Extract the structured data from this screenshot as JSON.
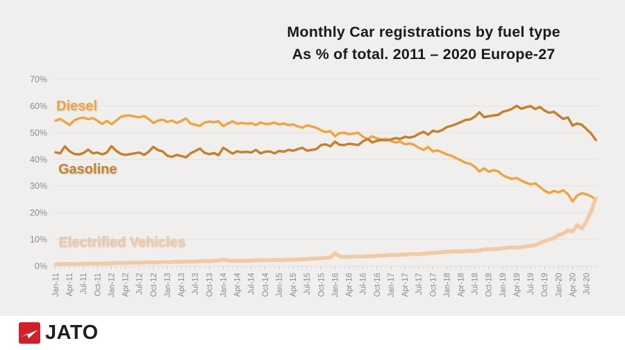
{
  "title": {
    "line1": "Monthly Car registrations by fuel type",
    "line2": "As % of total. 2011 – 2020 Europe-27"
  },
  "footer": {
    "brand": "JATO"
  },
  "colors": {
    "background": "#f0efed",
    "footer_bg": "#ffffff",
    "title_text": "#1b1a19",
    "axis_text": "#8c8b89",
    "gridline": "#e3e2e0",
    "tick": "#cfcecc",
    "diesel": "#f1a345",
    "gasoline": "#c4812e",
    "electrified": "#f3c9a4",
    "brand_red": "#d0202a",
    "brand_text": "#1f1f1f"
  },
  "chart_data": {
    "type": "line",
    "title": "Monthly Car registrations by fuel type",
    "subtitle": "As % of total. 2011 – 2020 Europe-27",
    "xlabel": "",
    "ylabel": "",
    "ylim": [
      0,
      70
    ],
    "ytick_step": 10,
    "ytick_suffix": "%",
    "tick_every": 3,
    "grid": true,
    "legend_position": "inline-annotations",
    "x": [
      "Jan-11",
      "Feb-11",
      "Mar-11",
      "Apr-11",
      "May-11",
      "Jun-11",
      "Jul-11",
      "Aug-11",
      "Sep-11",
      "Oct-11",
      "Nov-11",
      "Dec-11",
      "Jan-12",
      "Feb-12",
      "Mar-12",
      "Apr-12",
      "May-12",
      "Jun-12",
      "Jul-12",
      "Aug-12",
      "Sep-12",
      "Oct-12",
      "Nov-12",
      "Dec-12",
      "Jan-13",
      "Feb-13",
      "Mar-13",
      "Apr-13",
      "May-13",
      "Jun-13",
      "Jul-13",
      "Aug-13",
      "Sep-13",
      "Oct-13",
      "Nov-13",
      "Dec-13",
      "Jan-14",
      "Feb-14",
      "Mar-14",
      "Apr-14",
      "May-14",
      "Jun-14",
      "Jul-14",
      "Aug-14",
      "Sep-14",
      "Oct-14",
      "Nov-14",
      "Dec-14",
      "Jan-15",
      "Feb-15",
      "Mar-15",
      "Apr-15",
      "May-15",
      "Jun-15",
      "Jul-15",
      "Aug-15",
      "Sep-15",
      "Oct-15",
      "Nov-15",
      "Dec-15",
      "Jan-16",
      "Feb-16",
      "Mar-16",
      "Apr-16",
      "May-16",
      "Jun-16",
      "Jul-16",
      "Aug-16",
      "Sep-16",
      "Oct-16",
      "Nov-16",
      "Dec-16",
      "Jan-17",
      "Feb-17",
      "Mar-17",
      "Apr-17",
      "May-17",
      "Jun-17",
      "Jul-17",
      "Aug-17",
      "Sep-17",
      "Oct-17",
      "Nov-17",
      "Dec-17",
      "Jan-18",
      "Feb-18",
      "Mar-18",
      "Apr-18",
      "May-18",
      "Jun-18",
      "Jul-18",
      "Aug-18",
      "Sep-18",
      "Oct-18",
      "Nov-18",
      "Dec-18",
      "Jan-19",
      "Feb-19",
      "Mar-19",
      "Apr-19",
      "May-19",
      "Jun-19",
      "Jul-19",
      "Aug-19",
      "Sep-19",
      "Oct-19",
      "Nov-19",
      "Dec-19",
      "Jan-20",
      "Feb-20",
      "Mar-20",
      "Apr-20",
      "May-20",
      "Jun-20",
      "Jul-20",
      "Aug-20",
      "Sep-20"
    ],
    "series": [
      {
        "name": "Diesel",
        "color": "#f1a345",
        "width": 3.5,
        "values": [
          54.5,
          55.1,
          54.0,
          52.8,
          54.6,
          55.3,
          55.6,
          55.0,
          55.4,
          54.4,
          53.2,
          54.4,
          53.1,
          54.4,
          55.9,
          56.3,
          56.4,
          56.0,
          55.7,
          56.2,
          55.1,
          53.6,
          54.5,
          54.8,
          54.0,
          54.5,
          53.6,
          54.3,
          55.3,
          53.4,
          52.9,
          52.5,
          53.8,
          54.1,
          53.9,
          54.2,
          52.4,
          53.4,
          54.2,
          53.3,
          53.6,
          53.3,
          53.5,
          52.8,
          53.8,
          53.2,
          53.3,
          53.7,
          53.0,
          53.4,
          52.8,
          53.0,
          52.3,
          51.8,
          52.7,
          52.3,
          51.8,
          50.8,
          50.2,
          50.5,
          48.6,
          49.8,
          49.9,
          49.4,
          49.6,
          49.9,
          48.4,
          47.5,
          48.6,
          47.8,
          47.4,
          47.6,
          46.8,
          46.3,
          46.6,
          45.6,
          45.9,
          45.4,
          44.3,
          43.5,
          44.6,
          42.9,
          43.3,
          42.6,
          41.8,
          41.3,
          40.4,
          39.6,
          38.7,
          38.3,
          37.2,
          35.4,
          36.6,
          35.3,
          35.9,
          35.5,
          34.0,
          33.2,
          32.6,
          33.0,
          32.0,
          31.2,
          30.6,
          31.0,
          29.6,
          28.2,
          27.3,
          28.1,
          27.6,
          28.4,
          26.9,
          24.2,
          26.4,
          27.3,
          26.8,
          26.1,
          24.8
        ]
      },
      {
        "name": "Gasoline",
        "color": "#c4812e",
        "width": 3.5,
        "values": [
          42.6,
          42.2,
          44.8,
          43.0,
          42.0,
          41.8,
          42.3,
          43.6,
          42.2,
          42.5,
          41.8,
          42.5,
          44.9,
          43.2,
          42.0,
          41.6,
          41.9,
          42.2,
          42.5,
          41.6,
          42.8,
          44.6,
          43.4,
          42.9,
          41.3,
          40.9,
          41.6,
          41.2,
          40.7,
          42.2,
          43.1,
          44.0,
          42.4,
          41.9,
          42.3,
          41.5,
          44.3,
          43.2,
          42.1,
          43.0,
          42.6,
          42.8,
          42.5,
          43.5,
          42.2,
          42.8,
          42.9,
          42.2,
          43.1,
          42.8,
          43.5,
          43.2,
          43.8,
          44.3,
          43.2,
          43.5,
          43.8,
          45.3,
          45.6,
          44.8,
          46.6,
          45.4,
          45.3,
          45.8,
          45.6,
          45.3,
          46.7,
          47.6,
          46.3,
          46.9,
          47.2,
          47.1,
          47.4,
          47.9,
          47.6,
          48.4,
          48.1,
          48.5,
          49.5,
          50.3,
          49.2,
          50.7,
          50.3,
          50.9,
          52.1,
          52.5,
          53.2,
          53.9,
          54.7,
          54.9,
          55.9,
          57.6,
          55.8,
          56.1,
          56.4,
          56.6,
          57.8,
          58.2,
          58.9,
          60.0,
          58.9,
          59.5,
          59.9,
          58.8,
          59.6,
          58.2,
          57.4,
          57.8,
          56.4,
          55.1,
          55.7,
          52.6,
          53.4,
          52.9,
          51.3,
          49.6,
          47.2
        ]
      },
      {
        "name": "Electrified Vehicles",
        "color": "#f3c9a4",
        "width": 5.5,
        "values": [
          0.6,
          0.7,
          0.7,
          0.8,
          0.7,
          0.8,
          0.8,
          0.9,
          0.9,
          0.8,
          0.9,
          1.0,
          1.0,
          1.1,
          1.2,
          1.1,
          1.2,
          1.3,
          1.2,
          1.3,
          1.4,
          1.3,
          1.4,
          1.5,
          1.4,
          1.5,
          1.6,
          1.5,
          1.7,
          1.6,
          1.7,
          1.8,
          1.9,
          1.8,
          1.9,
          2.0,
          2.4,
          2.0,
          1.9,
          1.9,
          2.0,
          1.9,
          2.0,
          2.1,
          2.2,
          2.1,
          2.2,
          2.3,
          2.3,
          2.2,
          2.4,
          2.3,
          2.4,
          2.5,
          2.6,
          2.7,
          2.8,
          2.9,
          3.0,
          3.2,
          4.8,
          3.6,
          3.4,
          3.4,
          3.5,
          3.6,
          3.5,
          3.7,
          3.6,
          3.8,
          3.9,
          4.0,
          4.2,
          4.1,
          4.3,
          4.2,
          4.4,
          4.5,
          4.4,
          4.6,
          4.8,
          4.9,
          5.0,
          5.2,
          5.3,
          5.4,
          5.5,
          5.4,
          5.6,
          5.7,
          5.6,
          5.8,
          6.3,
          6.2,
          6.3,
          6.4,
          6.6,
          6.8,
          7.0,
          6.9,
          7.1,
          7.3,
          7.5,
          7.8,
          8.6,
          9.4,
          9.8,
          10.4,
          11.6,
          12.1,
          13.4,
          12.9,
          15.4,
          14.0,
          16.8,
          20.5,
          25.4
        ]
      }
    ]
  }
}
